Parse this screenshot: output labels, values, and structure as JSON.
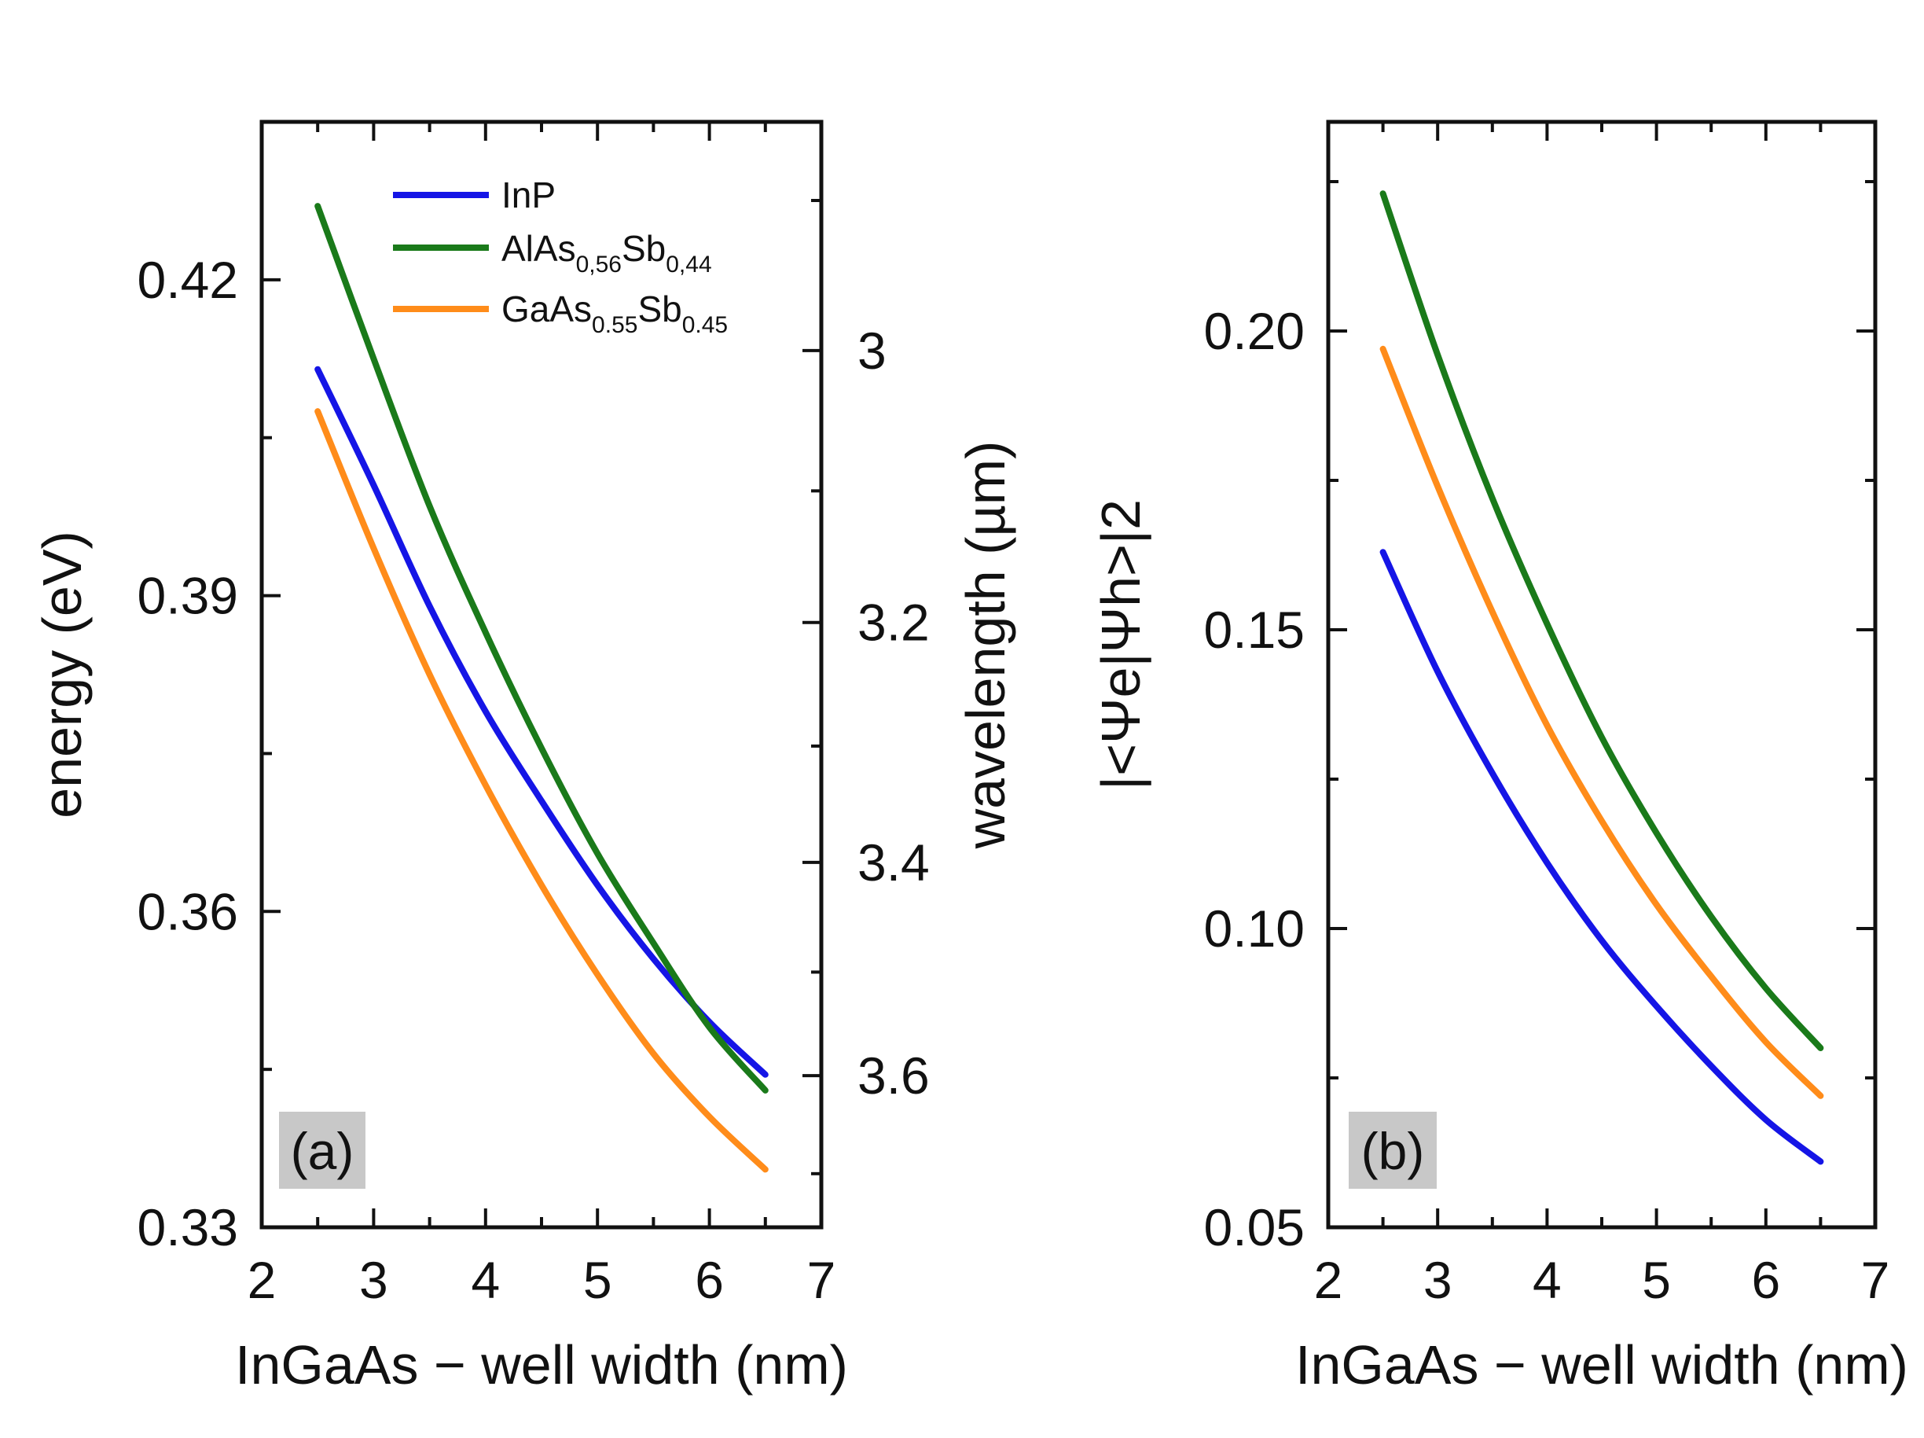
{
  "chart_data": [
    {
      "type": "line",
      "panel_label": "(a)",
      "xlabel": "InGaAs − well width (nm)",
      "ylabel": "energy (eV)",
      "xlim": [
        2,
        7
      ],
      "ylim": [
        0.33,
        0.435
      ],
      "xticks": [
        "2",
        "3",
        "4",
        "5",
        "6",
        "7"
      ],
      "yticks": [
        "0.33",
        "0.36",
        "0.39",
        "0.42"
      ],
      "right_axis": {
        "label": "wavelength (µm)",
        "ticks": [
          "3",
          "3.2",
          "3.4",
          "3.6"
        ]
      },
      "legend": [
        {
          "base": "InP",
          "sub1": "",
          "mid": "",
          "sub2": ""
        },
        {
          "base": "AlAs",
          "sub1": "0,56",
          "mid": "Sb",
          "sub2": "0,44"
        },
        {
          "base": "GaAs",
          "sub1": "0.55",
          "mid": "Sb",
          "sub2": "0.45"
        }
      ],
      "series": [
        {
          "name": "InP",
          "color": "#1515e6",
          "x": [
            2.5,
            3,
            3.5,
            4,
            4.5,
            5,
            5.5,
            6,
            6.5
          ],
          "values": [
            0.4115,
            0.4005,
            0.389,
            0.379,
            0.3705,
            0.3625,
            0.3555,
            0.3495,
            0.3445
          ]
        },
        {
          "name": "AlAs0,56Sb0,44",
          "color": "#1a7a1a",
          "x": [
            2.5,
            3,
            3.5,
            4,
            4.5,
            5,
            5.5,
            6,
            6.5
          ],
          "values": [
            0.427,
            0.4125,
            0.3985,
            0.3865,
            0.3755,
            0.3655,
            0.357,
            0.349,
            0.343
          ]
        },
        {
          "name": "GaAs0.55Sb0.45",
          "color": "#ff8c1a",
          "x": [
            2.5,
            3,
            3.5,
            4,
            4.5,
            5,
            5.5,
            6,
            6.5
          ],
          "values": [
            0.4075,
            0.3945,
            0.3825,
            0.372,
            0.3625,
            0.354,
            0.3465,
            0.3405,
            0.3355
          ]
        }
      ]
    },
    {
      "type": "line",
      "panel_label": "(b)",
      "xlabel": "InGaAs − well width (nm)",
      "ylabel": "|<Ψe|Ψh>|2",
      "xlim": [
        2,
        7
      ],
      "ylim": [
        0.05,
        0.235
      ],
      "xticks": [
        "2",
        "3",
        "4",
        "5",
        "6",
        "7"
      ],
      "yticks": [
        "0.05",
        "0.10",
        "0.15",
        "0.20"
      ],
      "series": [
        {
          "name": "InP",
          "color": "#1515e6",
          "x": [
            2.5,
            3,
            3.5,
            4,
            4.5,
            5,
            5.5,
            6,
            6.5
          ],
          "values": [
            0.163,
            0.143,
            0.126,
            0.111,
            0.098,
            0.087,
            0.077,
            0.068,
            0.061
          ]
        },
        {
          "name": "AlAs0,56Sb0,44",
          "color": "#1a7a1a",
          "x": [
            2.5,
            3,
            3.5,
            4,
            4.5,
            5,
            5.5,
            6,
            6.5
          ],
          "values": [
            0.223,
            0.196,
            0.172,
            0.151,
            0.132,
            0.116,
            0.102,
            0.09,
            0.08
          ]
        },
        {
          "name": "GaAs0.55Sb0.45",
          "color": "#ff8c1a",
          "x": [
            2.5,
            3,
            3.5,
            4,
            4.5,
            5,
            5.5,
            6,
            6.5
          ],
          "values": [
            0.197,
            0.174,
            0.153,
            0.134,
            0.118,
            0.104,
            0.092,
            0.081,
            0.072
          ]
        }
      ]
    }
  ]
}
